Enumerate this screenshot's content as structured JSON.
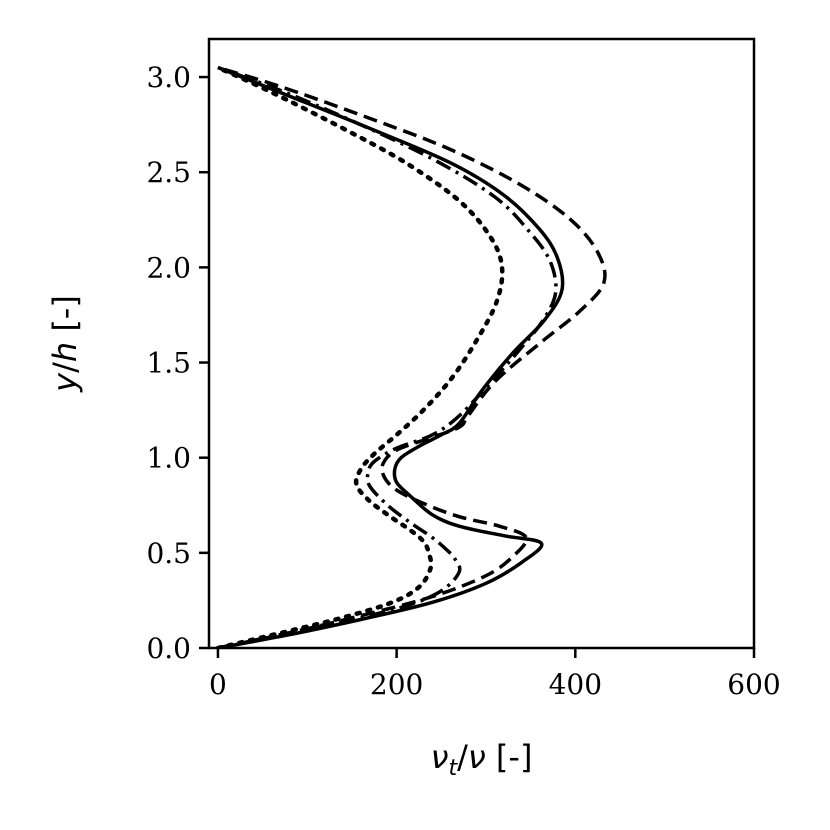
{
  "chart_data": {
    "type": "line",
    "title": "",
    "xlabel": {
      "var": "ν",
      "sub": "t",
      "rest": "/",
      "var2": "ν",
      "unit": " [-]"
    },
    "ylabel": {
      "var": "y",
      "rest": "/",
      "var2": "h",
      "unit": " [-]"
    },
    "xlim": [
      -10,
      600
    ],
    "ylim": [
      0,
      3.2
    ],
    "xticks": [
      0,
      200,
      400,
      600
    ],
    "yticks": [
      0.0,
      0.5,
      1.0,
      1.5,
      2.0,
      2.5,
      3.0
    ],
    "xtick_labels": [
      "0",
      "200",
      "400",
      "600"
    ],
    "ytick_labels": [
      "0.0",
      "0.5",
      "1.0",
      "1.5",
      "2.0",
      "2.5",
      "3.0"
    ],
    "grid": false,
    "line_color": "#000000",
    "series": [
      {
        "style": "solid",
        "points": [
          [
            0,
            0.0
          ],
          [
            80,
            0.07
          ],
          [
            160,
            0.15
          ],
          [
            240,
            0.24
          ],
          [
            300,
            0.34
          ],
          [
            340,
            0.45
          ],
          [
            362,
            0.55
          ],
          [
            320,
            0.59
          ],
          [
            270,
            0.64
          ],
          [
            240,
            0.7
          ],
          [
            215,
            0.8
          ],
          [
            200,
            0.87
          ],
          [
            198,
            0.94
          ],
          [
            205,
            1.0
          ],
          [
            225,
            1.06
          ],
          [
            250,
            1.12
          ],
          [
            270,
            1.18
          ],
          [
            295,
            1.35
          ],
          [
            330,
            1.55
          ],
          [
            365,
            1.72
          ],
          [
            385,
            1.88
          ],
          [
            380,
            2.05
          ],
          [
            360,
            2.2
          ],
          [
            320,
            2.38
          ],
          [
            260,
            2.55
          ],
          [
            170,
            2.73
          ],
          [
            80,
            2.9
          ],
          [
            0,
            3.05
          ]
        ]
      },
      {
        "style": "dashed",
        "points": [
          [
            0,
            0.0
          ],
          [
            80,
            0.08
          ],
          [
            160,
            0.17
          ],
          [
            240,
            0.27
          ],
          [
            300,
            0.38
          ],
          [
            330,
            0.48
          ],
          [
            345,
            0.58
          ],
          [
            315,
            0.64
          ],
          [
            270,
            0.69
          ],
          [
            230,
            0.76
          ],
          [
            200,
            0.83
          ],
          [
            186,
            0.9
          ],
          [
            185,
            0.97
          ],
          [
            200,
            1.04
          ],
          [
            235,
            1.1
          ],
          [
            270,
            1.16
          ],
          [
            280,
            1.22
          ],
          [
            310,
            1.4
          ],
          [
            360,
            1.6
          ],
          [
            405,
            1.77
          ],
          [
            432,
            1.92
          ],
          [
            425,
            2.08
          ],
          [
            395,
            2.25
          ],
          [
            340,
            2.43
          ],
          [
            260,
            2.62
          ],
          [
            160,
            2.8
          ],
          [
            70,
            2.95
          ],
          [
            0,
            3.05
          ]
        ]
      },
      {
        "style": "dashdot",
        "points": [
          [
            0,
            0.0
          ],
          [
            80,
            0.08
          ],
          [
            150,
            0.15
          ],
          [
            210,
            0.22
          ],
          [
            250,
            0.3
          ],
          [
            270,
            0.4
          ],
          [
            265,
            0.47
          ],
          [
            255,
            0.52
          ],
          [
            240,
            0.58
          ],
          [
            215,
            0.66
          ],
          [
            190,
            0.75
          ],
          [
            170,
            0.85
          ],
          [
            168,
            0.92
          ],
          [
            175,
            0.98
          ],
          [
            200,
            1.05
          ],
          [
            240,
            1.12
          ],
          [
            270,
            1.22
          ],
          [
            310,
            1.42
          ],
          [
            340,
            1.58
          ],
          [
            365,
            1.73
          ],
          [
            378,
            1.87
          ],
          [
            372,
            2.03
          ],
          [
            350,
            2.18
          ],
          [
            310,
            2.37
          ],
          [
            240,
            2.57
          ],
          [
            150,
            2.77
          ],
          [
            70,
            2.93
          ],
          [
            0,
            3.05
          ]
        ]
      },
      {
        "style": "dotted",
        "points": [
          [
            0,
            0.0
          ],
          [
            80,
            0.09
          ],
          [
            140,
            0.16
          ],
          [
            195,
            0.24
          ],
          [
            225,
            0.32
          ],
          [
            238,
            0.42
          ],
          [
            236,
            0.5
          ],
          [
            230,
            0.56
          ],
          [
            215,
            0.62
          ],
          [
            190,
            0.7
          ],
          [
            168,
            0.78
          ],
          [
            155,
            0.86
          ],
          [
            160,
            0.94
          ],
          [
            175,
            1.02
          ],
          [
            200,
            1.12
          ],
          [
            230,
            1.25
          ],
          [
            262,
            1.42
          ],
          [
            290,
            1.62
          ],
          [
            312,
            1.82
          ],
          [
            318,
            2.0
          ],
          [
            305,
            2.16
          ],
          [
            270,
            2.35
          ],
          [
            210,
            2.55
          ],
          [
            140,
            2.73
          ],
          [
            60,
            2.92
          ],
          [
            0,
            3.05
          ]
        ]
      }
    ]
  }
}
